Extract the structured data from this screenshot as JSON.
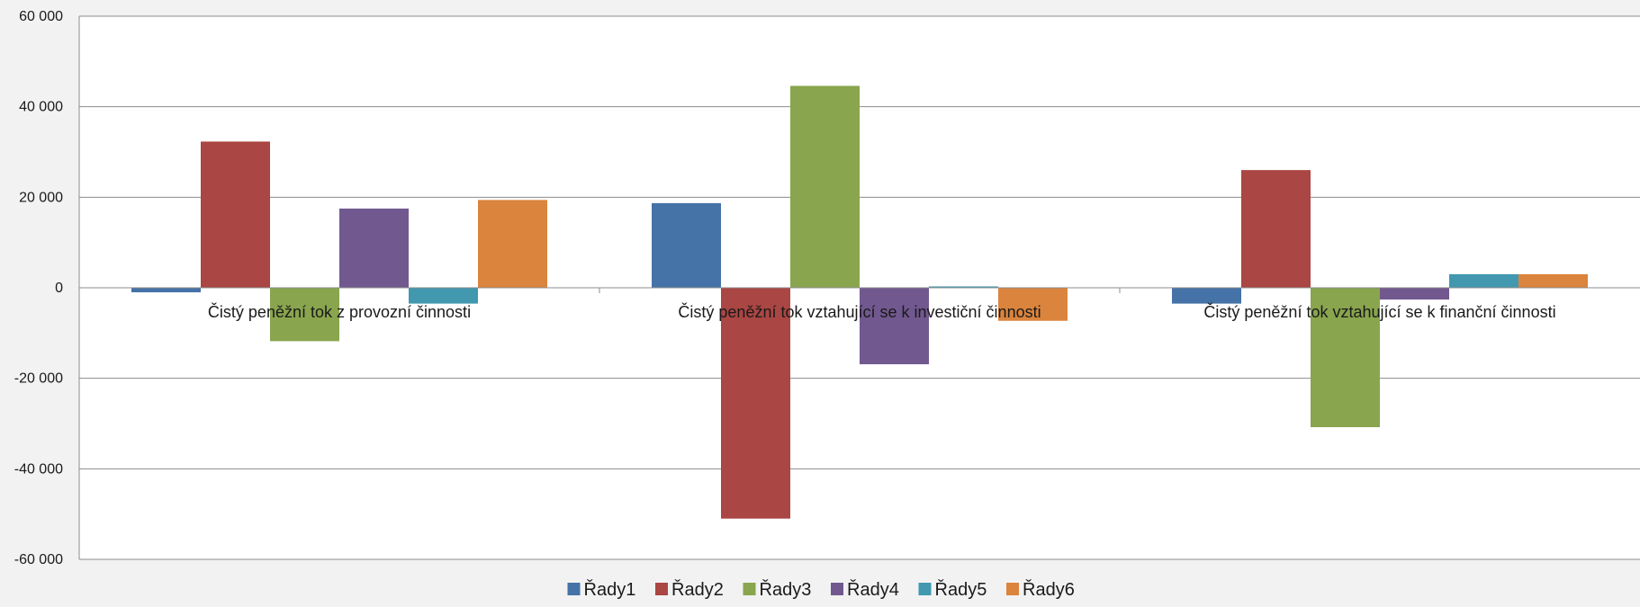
{
  "chart_data": {
    "type": "bar",
    "title": "",
    "xlabel": "",
    "ylabel": "",
    "ylim": [
      -60000,
      60000
    ],
    "yticks": [
      60000,
      40000,
      20000,
      0,
      -20000,
      -40000,
      -60000
    ],
    "ytick_labels": [
      "60 000",
      "40 000",
      "20 000",
      "0",
      "-20 000",
      "-40 000",
      "-60 000"
    ],
    "grid": true,
    "legend_position": "bottom",
    "categories": [
      "Čistý peněžní tok z provozní činnosti",
      "Čistý peněžní tok vztahující se k investiční činnosti",
      "Čistý peněžní tok vztahující se k finanční činnosti"
    ],
    "series": [
      {
        "name": "Řady1",
        "color": "#4572a7",
        "values": [
          -1000,
          18700,
          -3500
        ]
      },
      {
        "name": "Řady2",
        "color": "#aa4643",
        "values": [
          32300,
          -51000,
          26000
        ]
      },
      {
        "name": "Řady3",
        "color": "#89a54e",
        "values": [
          -11800,
          44600,
          -30800
        ]
      },
      {
        "name": "Řady4",
        "color": "#71588f",
        "values": [
          17500,
          -16900,
          -2600
        ]
      },
      {
        "name": "Řady5",
        "color": "#4198af",
        "values": [
          -3500,
          300,
          3000
        ]
      },
      {
        "name": "Řady6",
        "color": "#db843d",
        "values": [
          19400,
          -7300,
          3000
        ]
      }
    ]
  }
}
